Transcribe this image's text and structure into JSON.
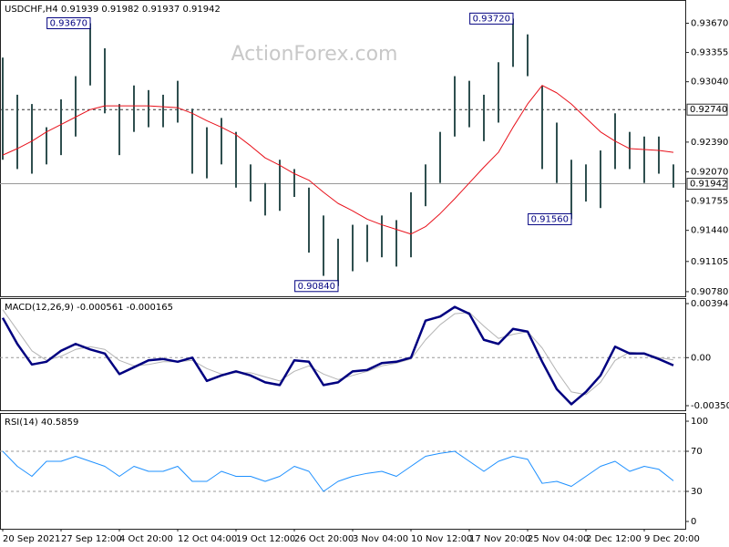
{
  "chart_data": [
    {
      "type": "hilo",
      "title": "USDCHF,H4  0.91939 0.91982 0.91937 0.91942",
      "watermark": "ActionForex.com",
      "xlim": [
        0,
        46.8125
      ],
      "ylim": [
        0.9073,
        0.9392
      ],
      "yticks": [
        {
          "value": 0.9367,
          "label": "0.93670"
        },
        {
          "value": 0.93355,
          "label": "0.93355"
        },
        {
          "value": 0.9304,
          "label": "0.93040"
        },
        {
          "value": 0.9239,
          "label": "0.92390"
        },
        {
          "value": 0.9207,
          "label": "0.92070"
        },
        {
          "value": 0.91755,
          "label": "0.91755"
        },
        {
          "value": 0.9144,
          "label": "0.91440"
        },
        {
          "value": 0.91105,
          "label": "0.91105"
        },
        {
          "value": 0.9078,
          "label": "0.90780"
        }
      ],
      "bar_color": "#2f4f4f",
      "high": [
        0.933,
        0.929,
        0.928,
        0.9255,
        0.9285,
        0.931,
        0.9367,
        0.934,
        0.928,
        0.93,
        0.9295,
        0.929,
        0.9305,
        0.9275,
        0.9255,
        0.9265,
        0.925,
        0.9215,
        0.9195,
        0.922,
        0.921,
        0.919,
        0.916,
        0.9135,
        0.915,
        0.915,
        0.916,
        0.9155,
        0.9185,
        0.9215,
        0.925,
        0.931,
        0.9305,
        0.929,
        0.9325,
        0.9372,
        0.9355,
        0.93,
        0.926,
        0.922,
        0.9215,
        0.923,
        0.927,
        0.925,
        0.9245,
        0.9245,
        0.9215
      ],
      "low": [
        0.922,
        0.921,
        0.9205,
        0.9215,
        0.9225,
        0.9245,
        0.93,
        0.927,
        0.9225,
        0.925,
        0.9255,
        0.9255,
        0.926,
        0.9205,
        0.92,
        0.9215,
        0.919,
        0.9175,
        0.916,
        0.9165,
        0.918,
        0.912,
        0.9095,
        0.9084,
        0.91,
        0.911,
        0.9115,
        0.9105,
        0.9115,
        0.917,
        0.9195,
        0.9245,
        0.9255,
        0.924,
        0.926,
        0.932,
        0.931,
        0.921,
        0.9195,
        0.9156,
        0.9175,
        0.9168,
        0.921,
        0.921,
        0.9195,
        0.9205,
        0.919
      ],
      "ma_color": "#e8101a",
      "ma_values": [
        0.9225,
        0.9232,
        0.924,
        0.925,
        0.9258,
        0.9266,
        0.9274,
        0.9278,
        0.9278,
        0.9278,
        0.9278,
        0.9277,
        0.9276,
        0.927,
        0.9262,
        0.9255,
        0.9247,
        0.9235,
        0.9222,
        0.9214,
        0.9205,
        0.9198,
        0.9185,
        0.9173,
        0.9165,
        0.9156,
        0.915,
        0.9145,
        0.914,
        0.9148,
        0.9162,
        0.9178,
        0.9195,
        0.9212,
        0.9228,
        0.9255,
        0.928,
        0.93,
        0.9292,
        0.928,
        0.9265,
        0.925,
        0.924,
        0.9232,
        0.9231,
        0.923,
        0.9228
      ],
      "hlines": [
        {
          "value": 0.9274,
          "label": "0.92740",
          "style": "dashed"
        },
        {
          "value": 0.91942,
          "label": "0.91942",
          "style": "solid"
        }
      ],
      "annotations": [
        {
          "x": 6,
          "value": 0.9367,
          "label": "0.93670"
        },
        {
          "x": 35,
          "value": 0.9372,
          "label": "0.93720"
        },
        {
          "x": 39,
          "value": 0.9156,
          "label": "0.91560"
        },
        {
          "x": 23,
          "value": 0.9084,
          "label": "0.90840"
        }
      ]
    },
    {
      "type": "line",
      "title": "MACD(12,26,9) -0.000561 -0.000165",
      "xlim": [
        0,
        46.8125
      ],
      "ylim": [
        -0.003839,
        0.004343
      ],
      "yticks": [
        0.003944,
        {
          "value": 0,
          "label": "0.00"
        },
        -0.003506
      ],
      "levels": [
        0
      ],
      "series": [
        {
          "color": "#b4b4b4",
          "width": 1,
          "values": [
            0.0035,
            0.002,
            0.0005,
            -0.0002,
            0.0001,
            0.0006,
            0.0008,
            0.0006,
            -0.0002,
            -0.0006,
            -0.0005,
            -0.0003,
            -0.0003,
            -0.0002,
            -0.0008,
            -0.0012,
            -0.0011,
            -0.0011,
            -0.0014,
            -0.0017,
            -0.001,
            -0.0006,
            -0.0012,
            -0.0016,
            -0.0013,
            -0.001,
            -0.0006,
            -0.0004,
            -0.0001,
            0.0013,
            0.0024,
            0.0032,
            0.0033,
            0.0023,
            0.0014,
            0.0017,
            0.0019,
            0.0007,
            -0.001,
            -0.0025,
            -0.0027,
            -0.0018,
            -0.0002,
            0.0004,
            0.0003,
            0,
            -0.000165
          ]
        },
        {
          "color": "#000080",
          "width": 2.5,
          "values": [
            0.0029,
            0.001,
            -0.0005,
            -0.0003,
            0.0005,
            0.001,
            0.0006,
            0.0003,
            -0.0012,
            -0.0007,
            -0.0002,
            -0.0001,
            -0.0003,
            0,
            -0.0017,
            -0.0013,
            -0.001,
            -0.0013,
            -0.0018,
            -0.002,
            -0.0002,
            -0.0003,
            -0.002,
            -0.0018,
            -0.001,
            -0.0009,
            -0.0004,
            -0.0003,
            0,
            0.0027,
            0.003,
            0.0037,
            0.0032,
            0.0013,
            0.001,
            0.0021,
            0.0019,
            -0.0003,
            -0.0023,
            -0.0034,
            -0.0025,
            -0.0013,
            0.0008,
            0.0003,
            0.0003,
            -0.0001,
            -0.000561
          ]
        }
      ]
    },
    {
      "type": "line",
      "title": "RSI(14) 40.5859",
      "xlim": [
        0,
        46.8125
      ],
      "ylim": [
        -7.3,
        108.2
      ],
      "yticks": [
        0,
        30,
        70,
        100
      ],
      "levels": [
        30,
        70
      ],
      "xticks": [
        {
          "value": 0,
          "label": "20 Sep 2021"
        },
        {
          "value": 4,
          "label": "27 Sep 12:00"
        },
        {
          "value": 8,
          "label": "4 Oct 20:00"
        },
        {
          "value": 12,
          "label": "12 Oct 04:00"
        },
        {
          "value": 16,
          "label": "19 Oct 12:00"
        },
        {
          "value": 20,
          "label": "26 Oct 20:00"
        },
        {
          "value": 24,
          "label": "3 Nov 04:00"
        },
        {
          "value": 28,
          "label": "10 Nov 12:00"
        },
        {
          "value": 32,
          "label": "17 Nov 20:00"
        },
        {
          "value": 36,
          "label": "25 Nov 04:00"
        },
        {
          "value": 40,
          "label": "2 Dec 12:00"
        },
        {
          "value": 44,
          "label": "9 Dec 20:00"
        }
      ],
      "series": [
        {
          "color": "#1e90ff",
          "width": 1,
          "values": [
            70,
            55,
            45,
            60,
            60,
            65,
            60,
            55,
            45,
            55,
            50,
            50,
            55,
            40,
            40,
            50,
            45,
            45,
            40,
            45,
            55,
            50,
            30,
            40,
            45,
            48,
            50,
            45,
            55,
            65,
            68,
            70,
            60,
            50,
            60,
            65,
            62,
            38,
            40,
            35,
            45,
            55,
            60,
            50,
            55,
            52,
            40.5859
          ]
        }
      ]
    }
  ]
}
